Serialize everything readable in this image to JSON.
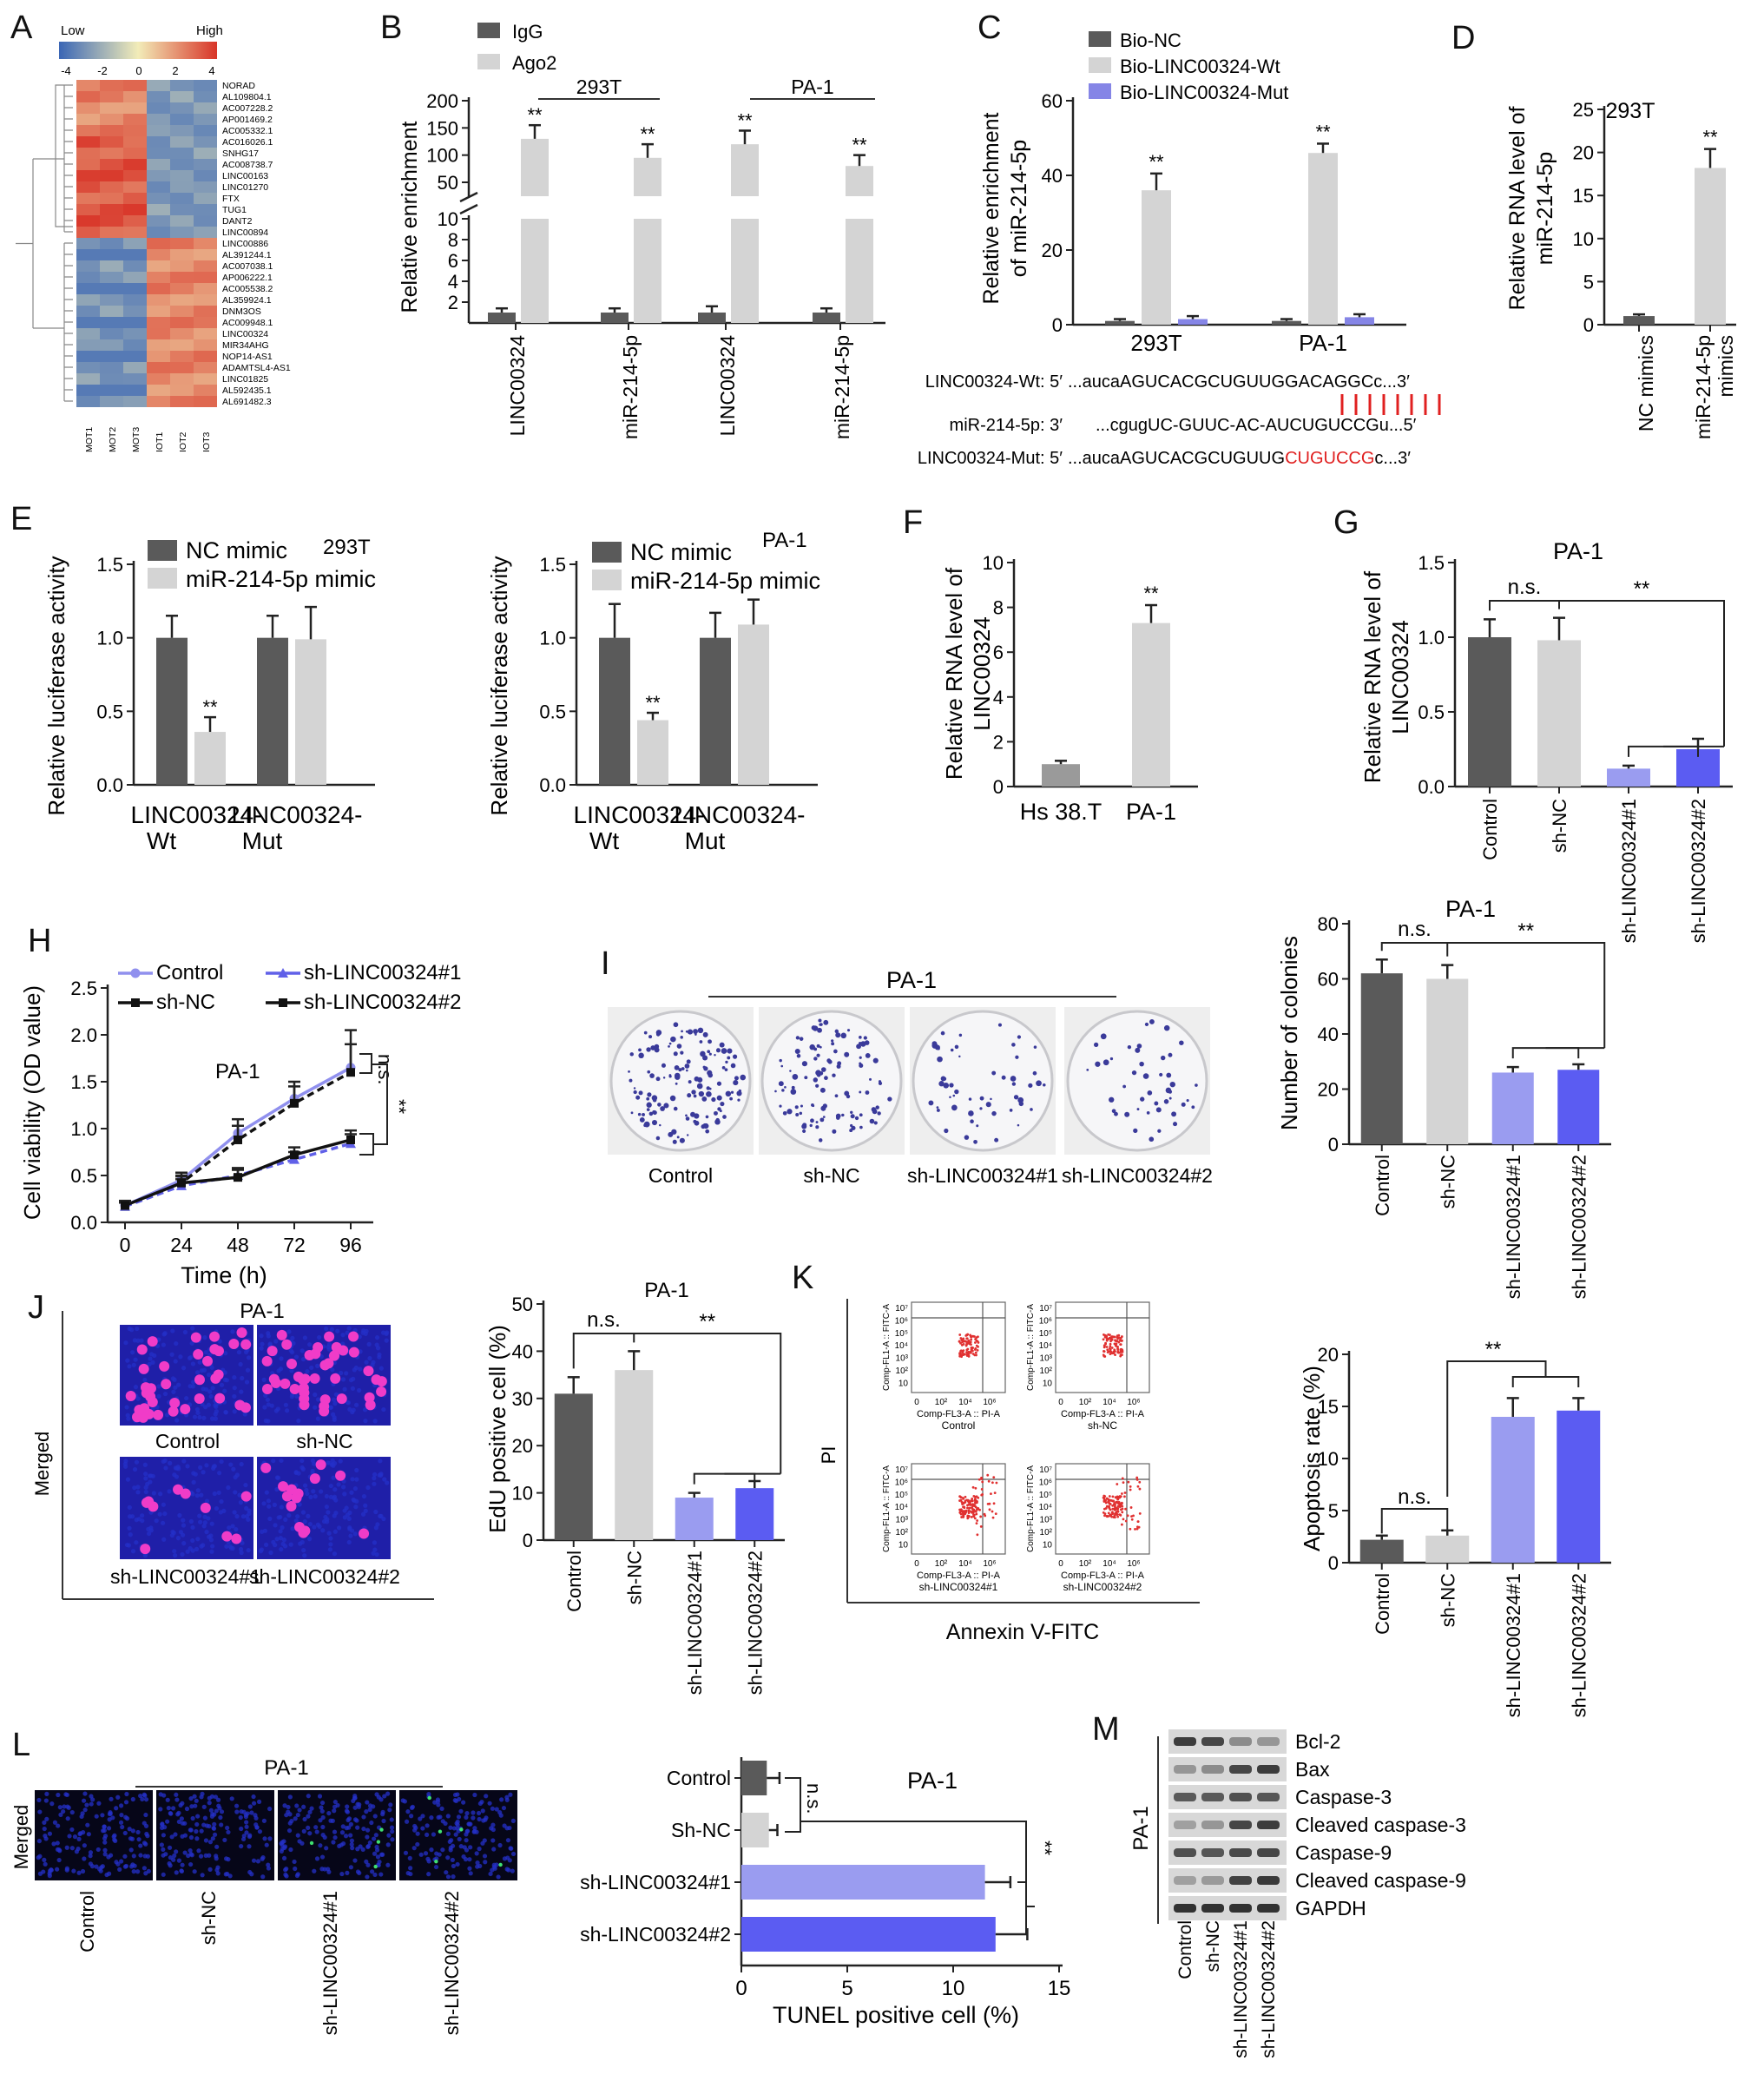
{
  "colors": {
    "dark": "#5a5a5a",
    "light": "#d4d4d4",
    "lav": "#9a9cf0",
    "blue": "#5b5cf2",
    "mut": "#8585e6",
    "red": "#e02020",
    "heatLow": "#3a66b5",
    "heatMid": "#f2ecb8",
    "heatHigh": "#d83428"
  },
  "panels": {
    "A": {
      "letter": "A",
      "low": "Low",
      "high": "High",
      "scale_ticks": [
        "-4",
        "-2",
        "0",
        "2",
        "4"
      ],
      "genes": [
        "NORAD",
        "AL109804.1",
        "AC007228.2",
        "AP001469.2",
        "AC005332.1",
        "AC016026.1",
        "SNHG17",
        "AC008738.7",
        "LINC00163",
        "LINC01270",
        "FTX",
        "TUG1",
        "DANT2",
        "LINC00894",
        "LINC00886",
        "AL391244.1",
        "AC007038.1",
        "AP006222.1",
        "AC005538.2",
        "AL359924.1",
        "DNM3OS",
        "AC009948.1",
        "LINC00324",
        "MIR34AHG",
        "NOP14-AS1",
        "ADAMTSL4-AS1",
        "LINC01825",
        "AL592435.1",
        "AL691482.3"
      ],
      "samples": [
        "MOT1",
        "MOT2",
        "MOT3",
        "IOT1",
        "IOT2",
        "IOT3"
      ]
    },
    "B": {
      "letter": "B",
      "legend": [
        "IgG",
        "Ago2"
      ],
      "ylabel": "Relative enrichment",
      "groups": [
        "293T",
        "PA-1"
      ],
      "categories": [
        "LINC00324",
        "miR-214-5p",
        "LINC00324",
        "miR-214-5p"
      ],
      "sig": "**",
      "upper_ticks": [
        "200",
        "150",
        "100",
        "50"
      ],
      "lower_ticks": [
        "10",
        "8",
        "6",
        "4",
        "2"
      ]
    },
    "C": {
      "letter": "C",
      "legend": [
        "Bio-NC",
        "Bio-LINC00324-Wt",
        "Bio-LINC00324-Mut"
      ],
      "ylabel": [
        "Relative enrichment",
        "of miR-214-5p"
      ],
      "categories": [
        "293T",
        "PA-1"
      ],
      "ticks": [
        "0",
        "20",
        "40",
        "60"
      ],
      "sig": "**"
    },
    "seq": {
      "wt_label": "LINC00324-Wt: 5′",
      "wt_seq": "...aucaAGUCACGCUGUUGGACAGGCc...3′",
      "mir_label": "miR-214-5p: 3′",
      "mir_seq": "...cgugUC-GUUC-AC-AUCUGUCCGu...5′",
      "mut_label": "LINC00324-Mut: 5′",
      "mut_seq_a": "...aucaAGUCACGCUGUUG",
      "mut_seq_b": "CUGUCCG",
      "mut_seq_c": "c...3′"
    },
    "D": {
      "letter": "D",
      "title": "293T",
      "ylabel": [
        "Relative RNA level of",
        "miR-214-5p"
      ],
      "categories": [
        "NC mimics",
        "miR-214-5p mimics"
      ],
      "ticks": [
        "0",
        "5",
        "10",
        "15",
        "20",
        "25"
      ],
      "sig": "**"
    },
    "E": {
      "letter": "E",
      "legend": [
        "NC mimic",
        "miR-214-5p mimic"
      ],
      "ylabel": "Relative luciferase activity",
      "cells": [
        "293T",
        "PA-1"
      ],
      "categories": [
        "LINC00324-Wt",
        "LINC00324-Mut"
      ],
      "ticks": [
        "0.0",
        "0.5",
        "1.0",
        "1.5"
      ],
      "sig": "**"
    },
    "F": {
      "letter": "F",
      "ylabel": [
        "Relative RNA level of",
        "LINC00324"
      ],
      "categories": [
        "Hs 38.T",
        "PA-1"
      ],
      "ticks": [
        "0",
        "2",
        "4",
        "6",
        "8",
        "10"
      ],
      "sig": "**"
    },
    "G": {
      "letter": "G",
      "title": "PA-1",
      "ylabel": [
        "Relative RNA level of",
        "LINC00324"
      ],
      "categories": [
        "Control",
        "sh-NC",
        "sh-LINC00324#1",
        "sh-LINC00324#2"
      ],
      "ticks": [
        "0.0",
        "0.5",
        "1.0",
        "1.5"
      ],
      "ns": "n.s.",
      "sig": "**"
    },
    "H": {
      "letter": "H",
      "legend": [
        "Control",
        "sh-NC",
        "sh-LINC00324#1",
        "sh-LINC00324#2"
      ],
      "title": "PA-1",
      "ylabel": "Cell viability (OD value)",
      "xlabel": "Time (h)",
      "xticks": [
        "0",
        "24",
        "48",
        "72",
        "96"
      ],
      "yticks": [
        "0.0",
        "0.5",
        "1.0",
        "1.5",
        "2.0",
        "2.5"
      ],
      "ns": "n.s.",
      "sig": "**"
    },
    "I": {
      "letter": "I",
      "title": "PA-1",
      "plates": [
        "Control",
        "sh-NC",
        "sh-LINC00324#1",
        "sh-LINC00324#2"
      ],
      "ylabel": "Number of colonies",
      "categories": [
        "Control",
        "sh-NC",
        "sh-LINC00324#1",
        "sh-LINC00324#2"
      ],
      "ticks": [
        "0",
        "20",
        "40",
        "60",
        "80"
      ],
      "ns": "n.s.",
      "sig": "**"
    },
    "J": {
      "letter": "J",
      "title": "PA-1",
      "side": "Merged",
      "tiles": [
        "Control",
        "sh-NC",
        "sh-LINC00324#1",
        "sh-LINC00324#2"
      ],
      "chart_title": "PA-1",
      "ylabel": "EdU positive cell (%)",
      "categories": [
        "Control",
        "sh-NC",
        "sh-LINC00324#1",
        "sh-LINC00324#2"
      ],
      "ticks": [
        "0",
        "10",
        "20",
        "30",
        "40",
        "50"
      ],
      "ns": "n.s.",
      "sig": "**"
    },
    "K": {
      "letter": "K",
      "side": "PI",
      "bottom": "Annexin V-FITC",
      "ylab": "Comp-FL1-A :: FITC-A",
      "xlab": "Comp-FL3-A :: PI-A",
      "plots": [
        "Control",
        "sh-NC",
        "sh-LINC00324#1",
        "sh-LINC00324#2"
      ],
      "yt": [
        "10⁷",
        "10⁶",
        "10⁵",
        "10⁴",
        "10³",
        "10²",
        "10"
      ],
      "xt": [
        "0",
        "10²",
        "10⁴",
        "10⁶"
      ],
      "ylabel": "Apoptosis rate (%)",
      "categories": [
        "Control",
        "sh-NC",
        "sh-LINC00324#1",
        "sh-LINC00324#2"
      ],
      "ticks": [
        "0",
        "5",
        "10",
        "15",
        "20"
      ],
      "ns": "n.s.",
      "sig": "**"
    },
    "L": {
      "letter": "L",
      "title": "PA-1",
      "side": "Merged",
      "tiles": [
        "Control",
        "sh-NC",
        "sh-LINC00324#1",
        "sh-LINC00324#2"
      ],
      "chart_title": "PA-1",
      "xlabel": "TUNEL positive cell (%)",
      "categories": [
        "Control",
        "Sh-NC",
        "sh-LINC00324#1",
        "sh-LINC00324#2"
      ],
      "ticks": [
        "0",
        "5",
        "10",
        "15"
      ],
      "ns": "n.s.",
      "sig": "**"
    },
    "M": {
      "letter": "M",
      "side": "PA-1",
      "proteins": [
        "Bcl-2",
        "Bax",
        "Caspase-3",
        "Cleaved caspase-3",
        "Caspase-9",
        "Cleaved caspase-9",
        "GAPDH"
      ],
      "lanes": [
        "Control",
        "sh-NC",
        "sh-LINC00324#1",
        "sh-LINC00324#2"
      ]
    }
  },
  "chart_data": [
    {
      "panel": "B",
      "type": "bar",
      "categories": [
        "LINC00324 (293T)",
        "miR-214-5p (293T)",
        "LINC00324 (PA-1)",
        "miR-214-5p (PA-1)"
      ],
      "series": [
        {
          "name": "IgG",
          "values": [
            1,
            1,
            1,
            1
          ],
          "errors": [
            0.4,
            0.4,
            0.6,
            0.4
          ]
        },
        {
          "name": "Ago2",
          "values": [
            130,
            95,
            120,
            80
          ],
          "errors": [
            25,
            25,
            25,
            20
          ]
        }
      ],
      "ylabel": "Relative enrichment",
      "y_break": [
        10,
        20
      ]
    },
    {
      "panel": "C",
      "type": "bar",
      "categories": [
        "293T",
        "PA-1"
      ],
      "series": [
        {
          "name": "Bio-NC",
          "values": [
            1,
            1
          ],
          "errors": [
            0.5,
            0.5
          ]
        },
        {
          "name": "Bio-LINC00324-Wt",
          "values": [
            36,
            46
          ],
          "errors": [
            4.5,
            2.5
          ]
        },
        {
          "name": "Bio-LINC00324-Mut",
          "values": [
            1.5,
            2
          ],
          "errors": [
            0.8,
            0.8
          ]
        }
      ],
      "ylim": [
        0,
        60
      ]
    },
    {
      "panel": "D",
      "type": "bar",
      "categories": [
        "NC mimics",
        "miR-214-5p mimics"
      ],
      "values": [
        1,
        18.2
      ],
      "errors": [
        0.2,
        2.2
      ],
      "ylim": [
        0,
        25
      ]
    },
    {
      "panel": "E-293T",
      "type": "bar",
      "categories": [
        "LINC00324-Wt",
        "LINC00324-Mut"
      ],
      "series": [
        {
          "name": "NC mimic",
          "values": [
            1.0,
            1.0
          ],
          "errors": [
            0.15,
            0.15
          ]
        },
        {
          "name": "miR-214-5p mimic",
          "values": [
            0.36,
            0.99
          ],
          "errors": [
            0.1,
            0.22
          ]
        }
      ],
      "ylim": [
        0,
        1.5
      ]
    },
    {
      "panel": "E-PA-1",
      "type": "bar",
      "categories": [
        "LINC00324-Wt",
        "LINC00324-Mut"
      ],
      "series": [
        {
          "name": "NC mimic",
          "values": [
            1.0,
            1.0
          ],
          "errors": [
            0.23,
            0.17
          ]
        },
        {
          "name": "miR-214-5p mimic",
          "values": [
            0.44,
            1.09
          ],
          "errors": [
            0.05,
            0.17
          ]
        }
      ],
      "ylim": [
        0,
        1.5
      ]
    },
    {
      "panel": "F",
      "type": "bar",
      "categories": [
        "Hs 38.T",
        "PA-1"
      ],
      "values": [
        1.0,
        7.3
      ],
      "errors": [
        0.15,
        0.8
      ],
      "ylim": [
        0,
        10
      ]
    },
    {
      "panel": "G",
      "type": "bar",
      "categories": [
        "Control",
        "sh-NC",
        "sh-LINC00324#1",
        "sh-LINC00324#2"
      ],
      "values": [
        1.0,
        0.98,
        0.12,
        0.25
      ],
      "errors": [
        0.12,
        0.15,
        0.02,
        0.07
      ],
      "ylim": [
        0,
        1.5
      ]
    },
    {
      "panel": "H",
      "type": "line",
      "x": [
        0,
        24,
        48,
        72,
        96
      ],
      "series": [
        {
          "name": "Control",
          "values": [
            0.18,
            0.45,
            0.95,
            1.32,
            1.65
          ],
          "errors": [
            0.05,
            0.08,
            0.15,
            0.18,
            0.4
          ]
        },
        {
          "name": "sh-NC",
          "values": [
            0.17,
            0.42,
            0.88,
            1.27,
            1.6
          ],
          "errors": [
            0.05,
            0.08,
            0.15,
            0.18,
            0.3
          ]
        },
        {
          "name": "sh-LINC00324#1",
          "values": [
            0.17,
            0.39,
            0.5,
            0.67,
            0.84
          ],
          "errors": [
            0.04,
            0.07,
            0.08,
            0.08,
            0.1
          ]
        },
        {
          "name": "sh-LINC00324#2",
          "values": [
            0.18,
            0.42,
            0.48,
            0.72,
            0.88
          ],
          "errors": [
            0.04,
            0.07,
            0.08,
            0.08,
            0.1
          ]
        }
      ],
      "xlabel": "Time (h)",
      "ylabel": "Cell viability (OD value)",
      "ylim": [
        0,
        2.5
      ]
    },
    {
      "panel": "I",
      "type": "bar",
      "categories": [
        "Control",
        "sh-NC",
        "sh-LINC00324#1",
        "sh-LINC00324#2"
      ],
      "values": [
        62,
        60,
        26,
        27
      ],
      "errors": [
        5,
        5,
        2,
        2
      ],
      "ylim": [
        0,
        80
      ]
    },
    {
      "panel": "J",
      "type": "bar",
      "categories": [
        "Control",
        "sh-NC",
        "sh-LINC00324#1",
        "sh-LINC00324#2"
      ],
      "values": [
        31,
        36,
        9,
        11
      ],
      "errors": [
        3.5,
        4,
        1,
        1.5
      ],
      "ylim": [
        0,
        50
      ]
    },
    {
      "panel": "K",
      "type": "bar",
      "categories": [
        "Control",
        "sh-NC",
        "sh-LINC00324#1",
        "sh-LINC00324#2"
      ],
      "values": [
        2.2,
        2.6,
        14,
        14.6
      ],
      "errors": [
        0.4,
        0.5,
        1.8,
        1.2
      ],
      "ylim": [
        0,
        20
      ]
    },
    {
      "panel": "L",
      "type": "bar",
      "orientation": "horizontal",
      "categories": [
        "Control",
        "Sh-NC",
        "sh-LINC00324#1",
        "sh-LINC00324#2"
      ],
      "values": [
        1.2,
        1.3,
        11.5,
        12
      ],
      "errors": [
        0.6,
        0.4,
        1.2,
        1.5
      ],
      "xlim": [
        0,
        15
      ]
    }
  ]
}
